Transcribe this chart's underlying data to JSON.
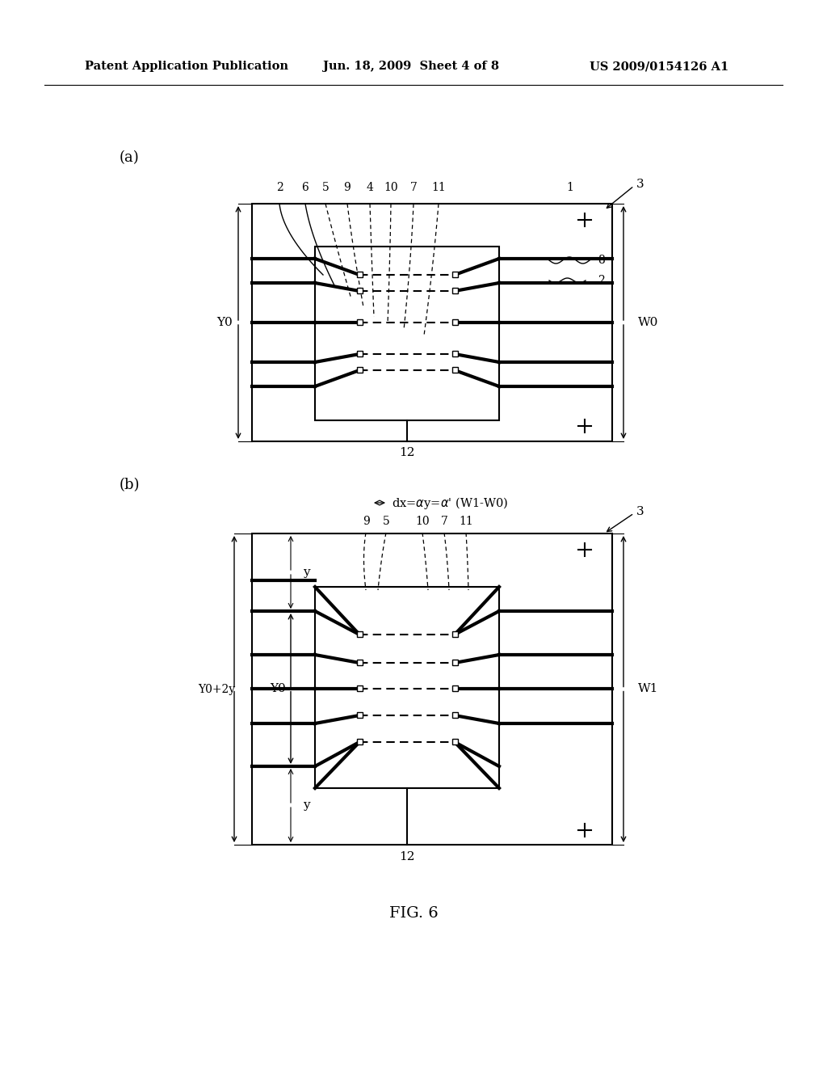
{
  "bg_color": "#ffffff",
  "header_left": "Patent Application Publication",
  "header_mid": "Jun. 18, 2009  Sheet 4 of 8",
  "header_right": "US 2009/0154126 A1",
  "fig_label": "FIG. 6",
  "panel_a_label": "(a)",
  "panel_b_label": "(b)",
  "panel_b_annotation": "dx=αy=α' (W1-W0)"
}
